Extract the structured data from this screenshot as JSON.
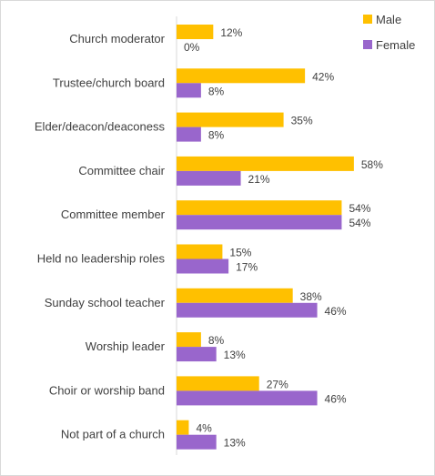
{
  "chart_data": {
    "type": "bar",
    "orientation": "horizontal",
    "categories": [
      "Church moderator",
      "Trustee/church board",
      "Elder/deacon/deaconess",
      "Committee chair",
      "Committee member",
      "Held no leadership roles",
      "Sunday school teacher",
      "Worship leader",
      "Choir or worship band",
      "Not part of a church"
    ],
    "series": [
      {
        "name": "Male",
        "color": "#ffc000",
        "values": [
          12,
          42,
          35,
          58,
          54,
          15,
          38,
          8,
          27,
          4
        ]
      },
      {
        "name": "Female",
        "color": "#9966cc",
        "values": [
          0,
          8,
          8,
          21,
          54,
          17,
          46,
          13,
          46,
          13
        ]
      }
    ],
    "value_suffix": "%",
    "title": "",
    "xlabel": "",
    "ylabel": "",
    "xlim": [
      0,
      100
    ],
    "grid": false,
    "legend": "top-right",
    "axis_line_color": "#d9d9d9"
  }
}
